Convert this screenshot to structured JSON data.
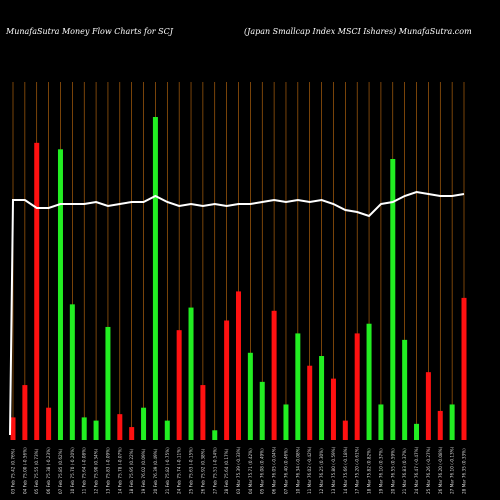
{
  "header": {
    "left": "MunafaSutra  Money Flow  Charts for SCJ",
    "right": "(Japan  Smallcap Index MSCI Ishares) MunafaSutra.com"
  },
  "colors": {
    "background": "#000000",
    "up": "#22ee22",
    "down": "#ff1111",
    "gridline": "#c87010",
    "line": "#ffffff"
  },
  "chart_data": {
    "type": "bar",
    "title": "MunafaSutra  Money Flow  Charts for SCJ",
    "subtitle": "(Japan  Smallcap Index MSCI Ishares) MunafaSutra.com",
    "ylim": [
      0,
      100
    ],
    "categories": [
      "03 Feb 75.42 (0.76%)",
      "04 Feb 75.00 (-0.56%)",
      "05 Feb 75.55 (0.73%)",
      "06 Feb 75.38 (-0.23%)",
      "07 Feb 75.85 (0.62%)",
      "10 Feb 75.70 (-0.20%)",
      "11 Feb 75.64 (-0.08%)",
      "12 Feb 75.90 (0.34%)",
      "13 Feb 75.83 (-0.09%)",
      "14 Feb 75.78 (-0.07%)",
      "18 Feb 75.95 (0.22%)",
      "19 Feb 76.02 (0.09%)",
      "20 Feb 76.39 (0.49%)",
      "21 Feb 75.82 (-0.75%)",
      "24 Feb 75.74 (-0.11%)",
      "25 Feb 75.63 (-0.15%)",
      "26 Feb 75.92 (0.38%)",
      "27 Feb 75.51 (-0.54%)",
      "28 Feb 75.64 (0.17%)",
      "03 Mar 75.39 (-0.33%)",
      "04 Mar 75.71 (0.42%)",
      "05 Mar 76.08 (0.49%)",
      "06 Mar 76.05 (-0.04%)",
      "07 Mar 76.40 (0.46%)",
      "10 Mar 76.34 (-0.08%)",
      "11 Mar 76.02 (-0.42%)",
      "12 Mar 76.25 (0.30%)",
      "13 Mar 75.80 (-0.59%)",
      "14 Mar 75.66 (-0.18%)",
      "17 Mar 75.20 (-0.61%)",
      "18 Mar 75.82 (0.82%)",
      "19 Mar 76.10 (0.37%)",
      "20 Mar 76.55 (0.59%)",
      "21 Mar 76.83 (0.37%)",
      "24 Mar 76.47 (-0.47%)",
      "25 Mar 76.26 (-0.27%)",
      "26 Mar 76.20 (-0.08%)",
      "27 Mar 76.10 (-0.13%)",
      "28 Mar 76.35 (0.33%)"
    ],
    "series": [
      {
        "values": [
          7,
          17,
          92,
          10,
          90,
          42,
          7,
          6,
          35,
          8,
          4,
          10,
          100,
          6,
          34,
          41,
          17,
          3,
          37,
          46,
          27,
          18,
          40,
          11,
          33,
          23,
          26,
          19,
          6,
          33,
          36,
          11,
          87,
          31,
          5,
          21,
          9,
          11,
          44
        ],
        "direction": [
          "down",
          "down",
          "down",
          "down",
          "up",
          "up",
          "up",
          "up",
          "up",
          "down",
          "down",
          "up",
          "up",
          "up",
          "down",
          "up",
          "down",
          "up",
          "down",
          "down",
          "up",
          "up",
          "down",
          "up",
          "up",
          "down",
          "up",
          "down",
          "down",
          "down",
          "up",
          "up",
          "up",
          "up",
          "up",
          "down",
          "down",
          "up",
          "down"
        ],
        "line": [
          75,
          75,
          73,
          73,
          74,
          74,
          74,
          74.5,
          73.5,
          74,
          74.5,
          74.5,
          76,
          74.5,
          73.5,
          74,
          73.5,
          74,
          73.5,
          74,
          74,
          74.5,
          75,
          74.5,
          75,
          74.5,
          75,
          74,
          72.5,
          72,
          71,
          74,
          74.5,
          76,
          77,
          76.5,
          76,
          76,
          76.5
        ]
      }
    ]
  }
}
